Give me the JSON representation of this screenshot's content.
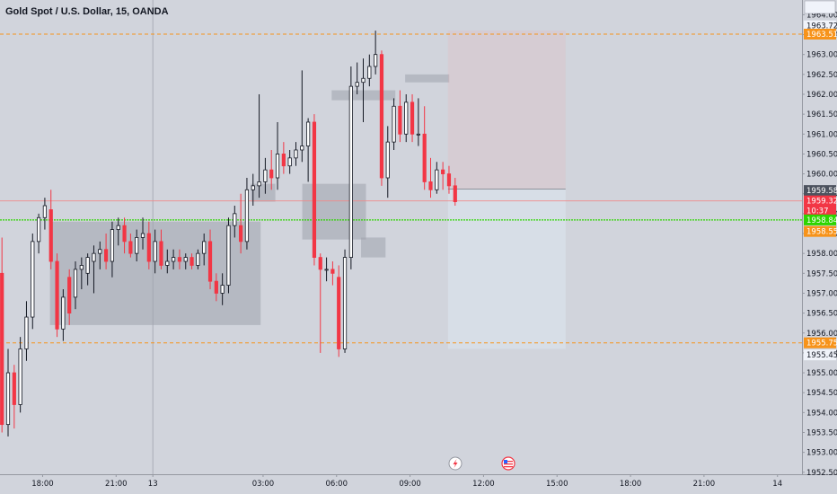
{
  "title": "Gold Spot / U.S. Dollar, 15, OANDA",
  "colors": {
    "background": "#d1d4dc",
    "up": "#131722",
    "down": "#f23645",
    "orange_line": "#f7931a",
    "green_line": "#2dd500",
    "red_line": "#f08a8a",
    "zone": "#9fa3ad"
  },
  "icons": [
    "lightning-icon",
    "us-flag-icon"
  ],
  "chart_data": {
    "type": "candlestick",
    "title": "Gold Spot / U.S. Dollar, 15, OANDA",
    "ylim": [
      1952.45,
      1964.37
    ],
    "y_ticks": [
      "1964.000",
      "1963.500",
      "1963.000",
      "1962.500",
      "1962.000",
      "1961.500",
      "1961.000",
      "1960.500",
      "1960.000",
      "1959.500",
      "1959.000",
      "1958.500",
      "1958.000",
      "1957.500",
      "1957.000",
      "1956.500",
      "1956.000",
      "1955.500",
      "1955.000",
      "1954.500",
      "1954.000",
      "1953.500",
      "1953.000",
      "1952.500"
    ],
    "x_ticks": [
      {
        "label": "18:00",
        "x": 18
      },
      {
        "label": "21:00",
        "x": 21
      },
      {
        "label": "13",
        "x": 22.5
      },
      {
        "label": "03:00",
        "x": 27
      },
      {
        "label": "06:00",
        "x": 30
      },
      {
        "label": "09:00",
        "x": 33
      },
      {
        "label": "12:00",
        "x": 36
      },
      {
        "label": "15:00",
        "x": 39
      },
      {
        "label": "18:00",
        "x": 42
      },
      {
        "label": "21:00",
        "x": 45
      },
      {
        "label": "14",
        "x": 48
      }
    ],
    "x_range": [
      16.26,
      49.0
    ],
    "session_break_x": 22.5,
    "price_tags": [
      {
        "label": "1963.721",
        "value": 1963.721,
        "style": "plain"
      },
      {
        "label": "1963.512",
        "value": 1963.512,
        "style": "orange"
      },
      {
        "label": "1959.581",
        "value": 1959.581,
        "style": "dark"
      },
      {
        "label": "1959.320",
        "value": 1959.32,
        "style": "red"
      },
      {
        "label": "10:37",
        "value": 1959.08,
        "style": "red"
      },
      {
        "label": "1958.842",
        "value": 1958.842,
        "style": "green"
      },
      {
        "label": "1958.553",
        "value": 1958.553,
        "style": "orange"
      },
      {
        "label": "1955.753",
        "value": 1955.753,
        "style": "orange"
      },
      {
        "label": "1955.450",
        "value": 1955.45,
        "style": "plain"
      }
    ],
    "hlines": [
      {
        "value": 1963.512,
        "style": "orange"
      },
      {
        "value": 1955.753,
        "style": "orange"
      },
      {
        "value": 1958.842,
        "style": "green"
      },
      {
        "value": 1959.32,
        "style": "red"
      }
    ],
    "zones": [
      {
        "x0": 18.3,
        "x1": 26.9,
        "y0": 1956.2,
        "y1": 1958.8
      },
      {
        "x0": 28.6,
        "x1": 31.2,
        "y0": 1958.35,
        "y1": 1959.75
      },
      {
        "x0": 26.5,
        "x1": 27.5,
        "y0": 1959.3,
        "y1": 1959.75
      },
      {
        "x0": 29.8,
        "x1": 32.4,
        "y0": 1961.85,
        "y1": 1962.1
      },
      {
        "x0": 31.0,
        "x1": 32.0,
        "y0": 1957.9,
        "y1": 1958.4
      },
      {
        "x0": 32.8,
        "x1": 34.6,
        "y0": 1962.3,
        "y1": 1962.5
      }
    ],
    "position_box": {
      "x0": 34.55,
      "x1": 39.35,
      "y_entry": 1959.62,
      "y_target": 1955.6,
      "y_stop": 1963.6
    },
    "candles": [
      {
        "o": 1957.5,
        "h": 1958.4,
        "l": 1953.5,
        "c": 1953.7
      },
      {
        "o": 1953.7,
        "h": 1955.6,
        "l": 1953.4,
        "c": 1955.0
      },
      {
        "o": 1955.0,
        "h": 1955.2,
        "l": 1953.6,
        "c": 1954.2
      },
      {
        "o": 1954.2,
        "h": 1955.9,
        "l": 1954.0,
        "c": 1955.6
      },
      {
        "o": 1955.6,
        "h": 1956.8,
        "l": 1955.3,
        "c": 1956.4
      },
      {
        "o": 1956.4,
        "h": 1958.5,
        "l": 1956.1,
        "c": 1958.3
      },
      {
        "o": 1958.3,
        "h": 1959.0,
        "l": 1958.0,
        "c": 1958.9
      },
      {
        "o": 1958.9,
        "h": 1959.4,
        "l": 1958.6,
        "c": 1959.2
      },
      {
        "o": 1959.1,
        "h": 1959.6,
        "l": 1957.6,
        "c": 1957.8
      },
      {
        "o": 1957.8,
        "h": 1958.0,
        "l": 1955.9,
        "c": 1956.1
      },
      {
        "o": 1956.1,
        "h": 1957.1,
        "l": 1955.8,
        "c": 1956.9
      },
      {
        "o": 1957.4,
        "h": 1957.6,
        "l": 1956.2,
        "c": 1956.5
      },
      {
        "o": 1956.9,
        "h": 1957.8,
        "l": 1956.6,
        "c": 1957.6
      },
      {
        "o": 1957.6,
        "h": 1957.9,
        "l": 1957.1,
        "c": 1957.7
      },
      {
        "o": 1957.5,
        "h": 1958.0,
        "l": 1957.2,
        "c": 1957.9
      },
      {
        "o": 1957.8,
        "h": 1958.2,
        "l": 1957.0,
        "c": 1958.0
      },
      {
        "o": 1958.0,
        "h": 1958.3,
        "l": 1957.6,
        "c": 1958.1
      },
      {
        "o": 1958.1,
        "h": 1958.5,
        "l": 1957.6,
        "c": 1957.8
      },
      {
        "o": 1957.8,
        "h": 1958.8,
        "l": 1957.4,
        "c": 1958.6
      },
      {
        "o": 1958.6,
        "h": 1958.9,
        "l": 1958.2,
        "c": 1958.7
      },
      {
        "o": 1958.7,
        "h": 1958.9,
        "l": 1958.0,
        "c": 1958.3
      },
      {
        "o": 1958.3,
        "h": 1958.5,
        "l": 1957.9,
        "c": 1958.0
      },
      {
        "o": 1958.0,
        "h": 1958.6,
        "l": 1957.8,
        "c": 1958.4
      },
      {
        "o": 1958.4,
        "h": 1958.9,
        "l": 1958.1,
        "c": 1958.5
      },
      {
        "o": 1958.5,
        "h": 1958.8,
        "l": 1957.6,
        "c": 1957.8
      },
      {
        "o": 1957.8,
        "h": 1958.6,
        "l": 1957.5,
        "c": 1958.3
      },
      {
        "o": 1958.3,
        "h": 1958.6,
        "l": 1957.6,
        "c": 1957.7
      },
      {
        "o": 1957.7,
        "h": 1958.1,
        "l": 1957.5,
        "c": 1957.8
      },
      {
        "o": 1957.8,
        "h": 1958.1,
        "l": 1957.6,
        "c": 1957.9
      },
      {
        "o": 1957.9,
        "h": 1958.1,
        "l": 1957.6,
        "c": 1957.8
      },
      {
        "o": 1957.8,
        "h": 1958.0,
        "l": 1957.6,
        "c": 1957.9
      },
      {
        "o": 1957.9,
        "h": 1958.0,
        "l": 1957.6,
        "c": 1957.7
      },
      {
        "o": 1957.7,
        "h": 1958.1,
        "l": 1957.6,
        "c": 1958.0
      },
      {
        "o": 1958.0,
        "h": 1958.5,
        "l": 1957.7,
        "c": 1958.3
      },
      {
        "o": 1958.3,
        "h": 1958.6,
        "l": 1957.1,
        "c": 1957.3
      },
      {
        "o": 1957.3,
        "h": 1957.5,
        "l": 1956.8,
        "c": 1957.0
      },
      {
        "o": 1957.0,
        "h": 1957.5,
        "l": 1956.7,
        "c": 1957.2
      },
      {
        "o": 1957.2,
        "h": 1958.9,
        "l": 1957.0,
        "c": 1958.7
      },
      {
        "o": 1958.7,
        "h": 1959.2,
        "l": 1958.4,
        "c": 1959.0
      },
      {
        "o": 1958.7,
        "h": 1959.5,
        "l": 1958.0,
        "c": 1958.3
      },
      {
        "o": 1958.3,
        "h": 1959.9,
        "l": 1958.1,
        "c": 1959.6
      },
      {
        "o": 1959.6,
        "h": 1960.0,
        "l": 1959.2,
        "c": 1959.7
      },
      {
        "o": 1959.7,
        "h": 1962.0,
        "l": 1959.4,
        "c": 1959.8
      },
      {
        "o": 1959.8,
        "h": 1960.4,
        "l": 1959.5,
        "c": 1960.1
      },
      {
        "o": 1960.1,
        "h": 1960.6,
        "l": 1959.6,
        "c": 1959.9
      },
      {
        "o": 1959.9,
        "h": 1961.3,
        "l": 1959.6,
        "c": 1960.5
      },
      {
        "o": 1960.5,
        "h": 1960.8,
        "l": 1960.0,
        "c": 1960.2
      },
      {
        "o": 1960.2,
        "h": 1960.6,
        "l": 1960.0,
        "c": 1960.4
      },
      {
        "o": 1960.4,
        "h": 1960.8,
        "l": 1960.2,
        "c": 1960.6
      },
      {
        "o": 1960.6,
        "h": 1962.6,
        "l": 1960.3,
        "c": 1960.7
      },
      {
        "o": 1960.7,
        "h": 1961.4,
        "l": 1959.8,
        "c": 1961.3
      },
      {
        "o": 1961.3,
        "h": 1961.5,
        "l": 1957.7,
        "c": 1957.9
      },
      {
        "o": 1957.9,
        "h": 1958.0,
        "l": 1955.5,
        "c": 1957.6
      },
      {
        "o": 1957.6,
        "h": 1957.9,
        "l": 1957.3,
        "c": 1957.6
      },
      {
        "o": 1957.6,
        "h": 1957.8,
        "l": 1957.2,
        "c": 1957.5
      },
      {
        "o": 1957.4,
        "h": 1957.7,
        "l": 1955.4,
        "c": 1955.6
      },
      {
        "o": 1955.6,
        "h": 1958.1,
        "l": 1955.5,
        "c": 1957.9
      },
      {
        "o": 1957.9,
        "h": 1962.7,
        "l": 1957.6,
        "c": 1962.2
      },
      {
        "o": 1962.2,
        "h": 1962.8,
        "l": 1962.0,
        "c": 1962.3
      },
      {
        "o": 1962.3,
        "h": 1962.9,
        "l": 1961.3,
        "c": 1962.4
      },
      {
        "o": 1962.4,
        "h": 1963.0,
        "l": 1962.2,
        "c": 1962.7
      },
      {
        "o": 1962.7,
        "h": 1963.6,
        "l": 1962.5,
        "c": 1963.0
      },
      {
        "o": 1963.0,
        "h": 1963.1,
        "l": 1959.7,
        "c": 1959.9
      },
      {
        "o": 1959.9,
        "h": 1961.2,
        "l": 1959.4,
        "c": 1960.8
      },
      {
        "o": 1960.8,
        "h": 1961.9,
        "l": 1960.6,
        "c": 1961.7
      },
      {
        "o": 1961.7,
        "h": 1962.1,
        "l": 1960.8,
        "c": 1961.0
      },
      {
        "o": 1961.0,
        "h": 1962.0,
        "l": 1960.8,
        "c": 1961.8
      },
      {
        "o": 1961.8,
        "h": 1962.0,
        "l": 1960.8,
        "c": 1961.0
      },
      {
        "o": 1961.0,
        "h": 1961.9,
        "l": 1960.7,
        "c": 1961.0
      },
      {
        "o": 1961.0,
        "h": 1961.7,
        "l": 1959.6,
        "c": 1959.8
      },
      {
        "o": 1959.8,
        "h": 1960.4,
        "l": 1959.4,
        "c": 1959.6
      },
      {
        "o": 1959.6,
        "h": 1960.3,
        "l": 1959.5,
        "c": 1960.1
      },
      {
        "o": 1960.1,
        "h": 1960.3,
        "l": 1959.6,
        "c": 1960.0
      },
      {
        "o": 1960.0,
        "h": 1960.2,
        "l": 1959.5,
        "c": 1959.7
      },
      {
        "o": 1959.7,
        "h": 1959.9,
        "l": 1959.2,
        "c": 1959.3
      }
    ]
  }
}
